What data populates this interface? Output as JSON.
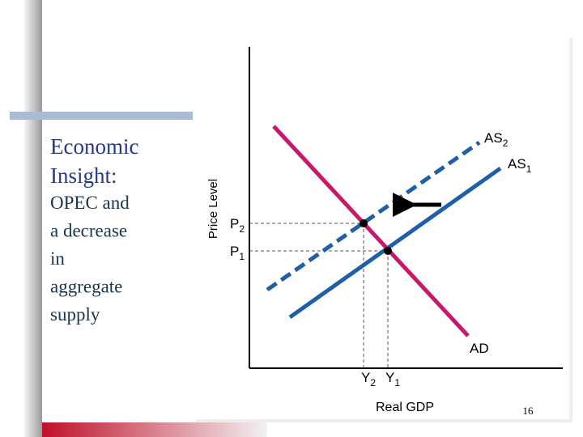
{
  "slide": {
    "title": "Economic Insight:",
    "subtitle": [
      "OPEC and",
      "a decrease",
      "in",
      "aggregate",
      "supply"
    ],
    "page_number": "16"
  },
  "diagram": {
    "y_axis_label": "Price Level",
    "x_axis_label": "Real GDP",
    "curves": [
      {
        "main": "AS",
        "sub": "2"
      },
      {
        "main": "AS",
        "sub": "1"
      },
      {
        "main": "AD"
      }
    ],
    "price_labels": [
      {
        "main": "P",
        "sub": "2"
      },
      {
        "main": "P",
        "sub": "1"
      }
    ],
    "output_labels": [
      {
        "main": "Y",
        "sub": "2"
      },
      {
        "main": "Y",
        "sub": "1"
      }
    ]
  }
}
